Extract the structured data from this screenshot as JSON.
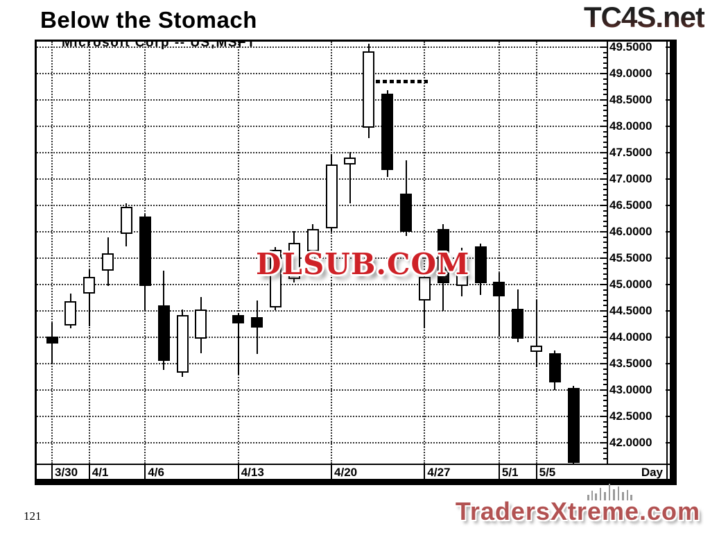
{
  "page": {
    "title": "Below the Stomach",
    "page_number": "121"
  },
  "logos": {
    "top_right": "TC4S.net",
    "bottom_right": "TradersXtreme.com",
    "watermark": "DLSUB.COM"
  },
  "colors": {
    "candle_up_fill": "#ffffff",
    "candle_down_fill": "#000000",
    "watermark_red": "#ce2127",
    "traders_red": "#b25252",
    "grid": "#2e2e2e"
  },
  "chart_data": {
    "type": "candlestick",
    "symbol_label": "Microsoft  Corp  --  US;MSFT",
    "timeframe_label": "Day",
    "y_axis": {
      "min": 42.0,
      "max": 49.5,
      "step": 0.5,
      "side": "right",
      "tick_labels": [
        "49.5000",
        "49.0000",
        "48.5000",
        "48.0000",
        "47.5000",
        "47.0000",
        "46.5000",
        "46.0000",
        "45.5000",
        "45.0000",
        "44.5000",
        "44.0000",
        "43.5000",
        "43.0000",
        "42.5000",
        "42.0000"
      ]
    },
    "x_axis": {
      "ticks": [
        {
          "label": "3/30",
          "candle": 0
        },
        {
          "label": "4/1",
          "candle": 2
        },
        {
          "label": "4/6",
          "candle": 5
        },
        {
          "label": "4/13",
          "candle": 9
        },
        {
          "label": "4/20",
          "candle": 14
        },
        {
          "label": "4/27",
          "candle": 19
        },
        {
          "label": "5/1",
          "candle": 23
        },
        {
          "label": "5/5",
          "candle": 25
        }
      ]
    },
    "annotation": {
      "type": "dotted-line",
      "price": 48.85,
      "from_candle": 16,
      "to_candle": 19
    },
    "candles": [
      {
        "o": 44.01,
        "h": 44.28,
        "l": 43.49,
        "c": 43.88,
        "dir": "down"
      },
      {
        "o": 44.23,
        "h": 44.83,
        "l": 44.17,
        "c": 44.69,
        "dir": "up"
      },
      {
        "o": 44.83,
        "h": 45.27,
        "l": 44.21,
        "c": 45.14,
        "dir": "up"
      },
      {
        "o": 45.26,
        "h": 45.89,
        "l": 44.98,
        "c": 45.59,
        "dir": "up"
      },
      {
        "o": 45.96,
        "h": 46.54,
        "l": 45.72,
        "c": 46.47,
        "dir": "up"
      },
      {
        "o": 46.29,
        "h": 46.33,
        "l": 44.51,
        "c": 44.98,
        "dir": "down"
      },
      {
        "o": 44.61,
        "h": 45.26,
        "l": 43.38,
        "c": 43.55,
        "dir": "down"
      },
      {
        "o": 43.33,
        "h": 44.52,
        "l": 43.25,
        "c": 44.42,
        "dir": "up"
      },
      {
        "o": 43.98,
        "h": 44.76,
        "l": 43.7,
        "c": 44.52,
        "dir": "up"
      },
      {
        "o": 44.42,
        "h": 44.46,
        "l": 43.29,
        "c": 44.26,
        "dir": "down",
        "gap_before": true
      },
      {
        "o": 44.38,
        "h": 44.7,
        "l": 43.68,
        "c": 44.18,
        "dir": "down"
      },
      {
        "o": 44.56,
        "h": 45.71,
        "l": 44.51,
        "c": 45.66,
        "dir": "up"
      },
      {
        "o": 45.11,
        "h": 46.01,
        "l": 45.04,
        "c": 45.79,
        "dir": "up"
      },
      {
        "o": 45.63,
        "h": 46.14,
        "l": 45.59,
        "c": 46.05,
        "dir": "up"
      },
      {
        "o": 46.07,
        "h": 47.48,
        "l": 46.0,
        "c": 47.28,
        "dir": "up"
      },
      {
        "o": 47.28,
        "h": 47.51,
        "l": 46.54,
        "c": 47.41,
        "dir": "up"
      },
      {
        "o": 47.98,
        "h": 49.56,
        "l": 47.78,
        "c": 49.42,
        "dir": "up"
      },
      {
        "o": 48.62,
        "h": 48.68,
        "l": 47.04,
        "c": 47.17,
        "dir": "down"
      },
      {
        "o": 46.73,
        "h": 47.36,
        "l": 45.92,
        "c": 46.0,
        "dir": "down"
      },
      {
        "o": 44.7,
        "h": 45.25,
        "l": 44.17,
        "c": 45.14,
        "dir": "up"
      },
      {
        "o": 46.05,
        "h": 46.15,
        "l": 44.5,
        "c": 45.02,
        "dir": "down"
      },
      {
        "o": 44.98,
        "h": 45.7,
        "l": 44.78,
        "c": 45.2,
        "dir": "up"
      },
      {
        "o": 45.72,
        "h": 45.78,
        "l": 44.8,
        "c": 45.02,
        "dir": "down"
      },
      {
        "o": 45.05,
        "h": 45.22,
        "l": 44.01,
        "c": 44.77,
        "dir": "down"
      },
      {
        "o": 44.54,
        "h": 44.91,
        "l": 43.91,
        "c": 43.97,
        "dir": "down"
      },
      {
        "o": 43.73,
        "h": 44.71,
        "l": 43.44,
        "c": 43.84,
        "dir": "up"
      },
      {
        "o": 43.7,
        "h": 43.75,
        "l": 43.0,
        "c": 43.15,
        "dir": "down"
      },
      {
        "o": 43.04,
        "h": 43.08,
        "l": 41.6,
        "c": 41.62,
        "dir": "down"
      }
    ]
  }
}
